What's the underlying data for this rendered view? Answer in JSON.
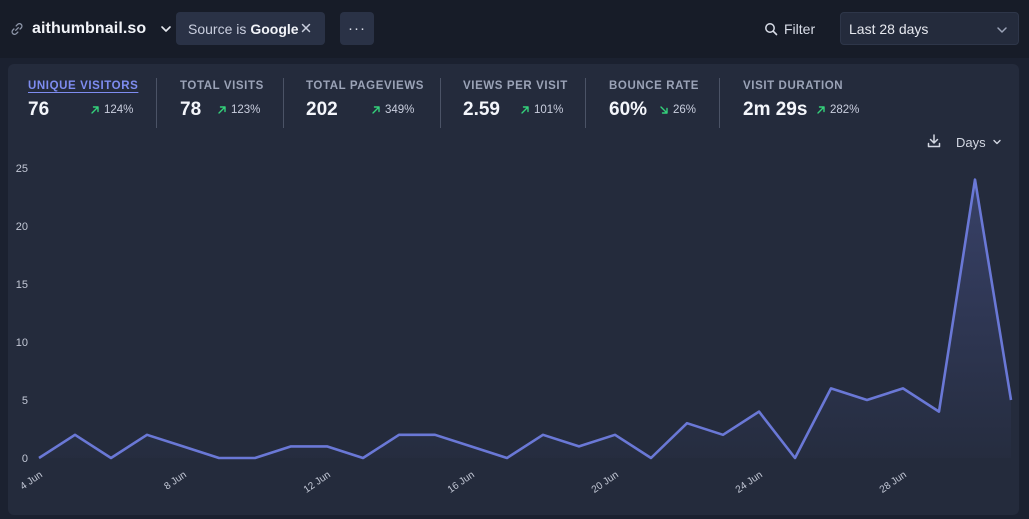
{
  "header": {
    "site_name": "aithumbnail.so",
    "filter_chip": {
      "label": "Source is",
      "value": "Google"
    },
    "more_label": "···",
    "filter_label": "Filter",
    "date_range": "Last 28 days"
  },
  "stats": [
    {
      "label": "UNIQUE VISITORS",
      "value": "76",
      "change": "124%",
      "direction": "up"
    },
    {
      "label": "TOTAL VISITS",
      "value": "78",
      "change": "123%",
      "direction": "up"
    },
    {
      "label": "TOTAL PAGEVIEWS",
      "value": "202",
      "change": "349%",
      "direction": "up"
    },
    {
      "label": "VIEWS PER VISIT",
      "value": "2.59",
      "change": "101%",
      "direction": "up"
    },
    {
      "label": "BOUNCE RATE",
      "value": "60%",
      "change": "26%",
      "direction": "down"
    },
    {
      "label": "VISIT DURATION",
      "value": "2m 29s",
      "change": "282%",
      "direction": "up"
    }
  ],
  "interval_label": "Days",
  "colors": {
    "line": "#6a78d6",
    "up_arrow": "#34d27b",
    "down_arrow": "#34d27b"
  },
  "chart_data": {
    "type": "area",
    "title": "",
    "xlabel": "",
    "ylabel": "",
    "ylim": [
      0,
      25
    ],
    "yticks": [
      0,
      5,
      10,
      15,
      20,
      25
    ],
    "x_tick_labels": [
      "4 Jun",
      "8 Jun",
      "12 Jun",
      "16 Jun",
      "20 Jun",
      "24 Jun",
      "28 Jun"
    ],
    "x": [
      "4 Jun",
      "5 Jun",
      "6 Jun",
      "7 Jun",
      "8 Jun",
      "9 Jun",
      "10 Jun",
      "11 Jun",
      "12 Jun",
      "13 Jun",
      "14 Jun",
      "15 Jun",
      "16 Jun",
      "17 Jun",
      "18 Jun",
      "19 Jun",
      "20 Jun",
      "21 Jun",
      "22 Jun",
      "23 Jun",
      "24 Jun",
      "25 Jun",
      "26 Jun",
      "27 Jun",
      "28 Jun",
      "29 Jun",
      "30 Jun",
      "1 Jul"
    ],
    "series": [
      {
        "values": [
          0,
          2,
          0,
          2,
          1,
          0,
          0,
          1,
          1,
          0,
          2,
          2,
          1,
          0,
          2,
          1,
          2,
          0,
          3,
          2,
          4,
          0,
          6,
          5,
          6,
          4,
          24,
          5
        ]
      }
    ]
  }
}
